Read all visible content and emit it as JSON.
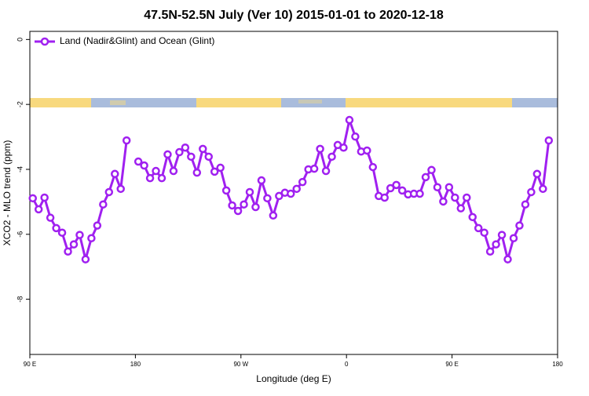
{
  "chart_data": {
    "type": "line",
    "title": "47.5N-52.5N July (Ver 10)   2015-01-01 to 2020-12-18",
    "xlabel": "Longitude (deg E)",
    "ylabel": "XCO2 - MLO trend (ppm)",
    "x": [
      92.5,
      97.5,
      102.5,
      107.5,
      112.5,
      117.5,
      122.5,
      127.5,
      132.5,
      137.5,
      142.5,
      147.5,
      152.5,
      157.5,
      162.5,
      167.5,
      172.5,
      177.5,
      182.5,
      187.5,
      192.5,
      197.5,
      202.5,
      207.5,
      212.5,
      217.5,
      222.5,
      227.5,
      232.5,
      237.5,
      242.5,
      247.5,
      252.5,
      257.5,
      262.5,
      267.5,
      272.5,
      277.5,
      282.5,
      287.5,
      292.5,
      297.5,
      302.5,
      307.5,
      312.5,
      317.5,
      322.5,
      327.5,
      332.5,
      337.5,
      342.5,
      347.5,
      352.5,
      357.5,
      362.5,
      367.5,
      372.5,
      377.5,
      382.5,
      387.5,
      392.5,
      397.5,
      402.5,
      407.5,
      412.5,
      417.5,
      422.5,
      427.5,
      432.5,
      437.5,
      442.5,
      447.5,
      452.5,
      457.5,
      462.5,
      467.5,
      472.5,
      477.5,
      482.5,
      487.5,
      492.5,
      497.5,
      502.5,
      507.5,
      512.5,
      517.5,
      522.5,
      527.5,
      532.5
    ],
    "series": [
      {
        "name": "Land (Nadir&Glint) and Ocean (Glint)",
        "color": "#a020f0",
        "values": [
          -4.89,
          -5.23,
          -4.87,
          -5.49,
          -5.81,
          -5.95,
          -6.53,
          -6.31,
          -6.02,
          -6.77,
          -6.12,
          -5.73,
          -5.08,
          -4.7,
          -4.14,
          -4.6,
          -3.11,
          null,
          -3.76,
          -3.88,
          -4.27,
          -4.05,
          -4.27,
          -3.54,
          -4.05,
          -3.47,
          -3.33,
          -3.61,
          -4.1,
          -3.37,
          -3.61,
          -4.07,
          -3.95,
          -4.65,
          -5.11,
          -5.28,
          -5.08,
          -4.7,
          -5.16,
          -4.34,
          -4.89,
          -5.42,
          -4.82,
          -4.72,
          -4.75,
          -4.6,
          -4.39,
          -4.0,
          -3.98,
          -3.37,
          -4.05,
          -3.61,
          -3.25,
          -3.33,
          -2.48,
          -2.99,
          -3.45,
          -3.42,
          -3.93,
          -4.82,
          -4.87,
          -4.58,
          -4.48,
          -4.65,
          -4.77,
          -4.75,
          -4.75,
          -4.24,
          -4.02,
          -4.55,
          -4.99,
          -4.55,
          -4.87,
          -5.2,
          -4.87,
          -5.47,
          -5.81,
          -5.95,
          -6.53,
          -6.31,
          -6.02,
          -6.77,
          -6.12,
          -5.73,
          -5.08,
          -4.7,
          -4.14,
          -4.6,
          -3.11
        ]
      }
    ],
    "xlim": [
      90,
      540
    ],
    "xticks": [
      {
        "value": 90,
        "label": "90 E"
      },
      180,
      {
        "value": 270,
        "label": "90 W"
      },
      {
        "value": 360,
        "label": "0"
      },
      {
        "value": 450,
        "label": "90 E"
      },
      {
        "value": 540,
        "label": "180"
      }
    ],
    "ylim": [
      -9.7,
      0.25
    ],
    "yticks": [
      0,
      -2,
      -4,
      -6,
      -8
    ],
    "legend": "top-left"
  }
}
